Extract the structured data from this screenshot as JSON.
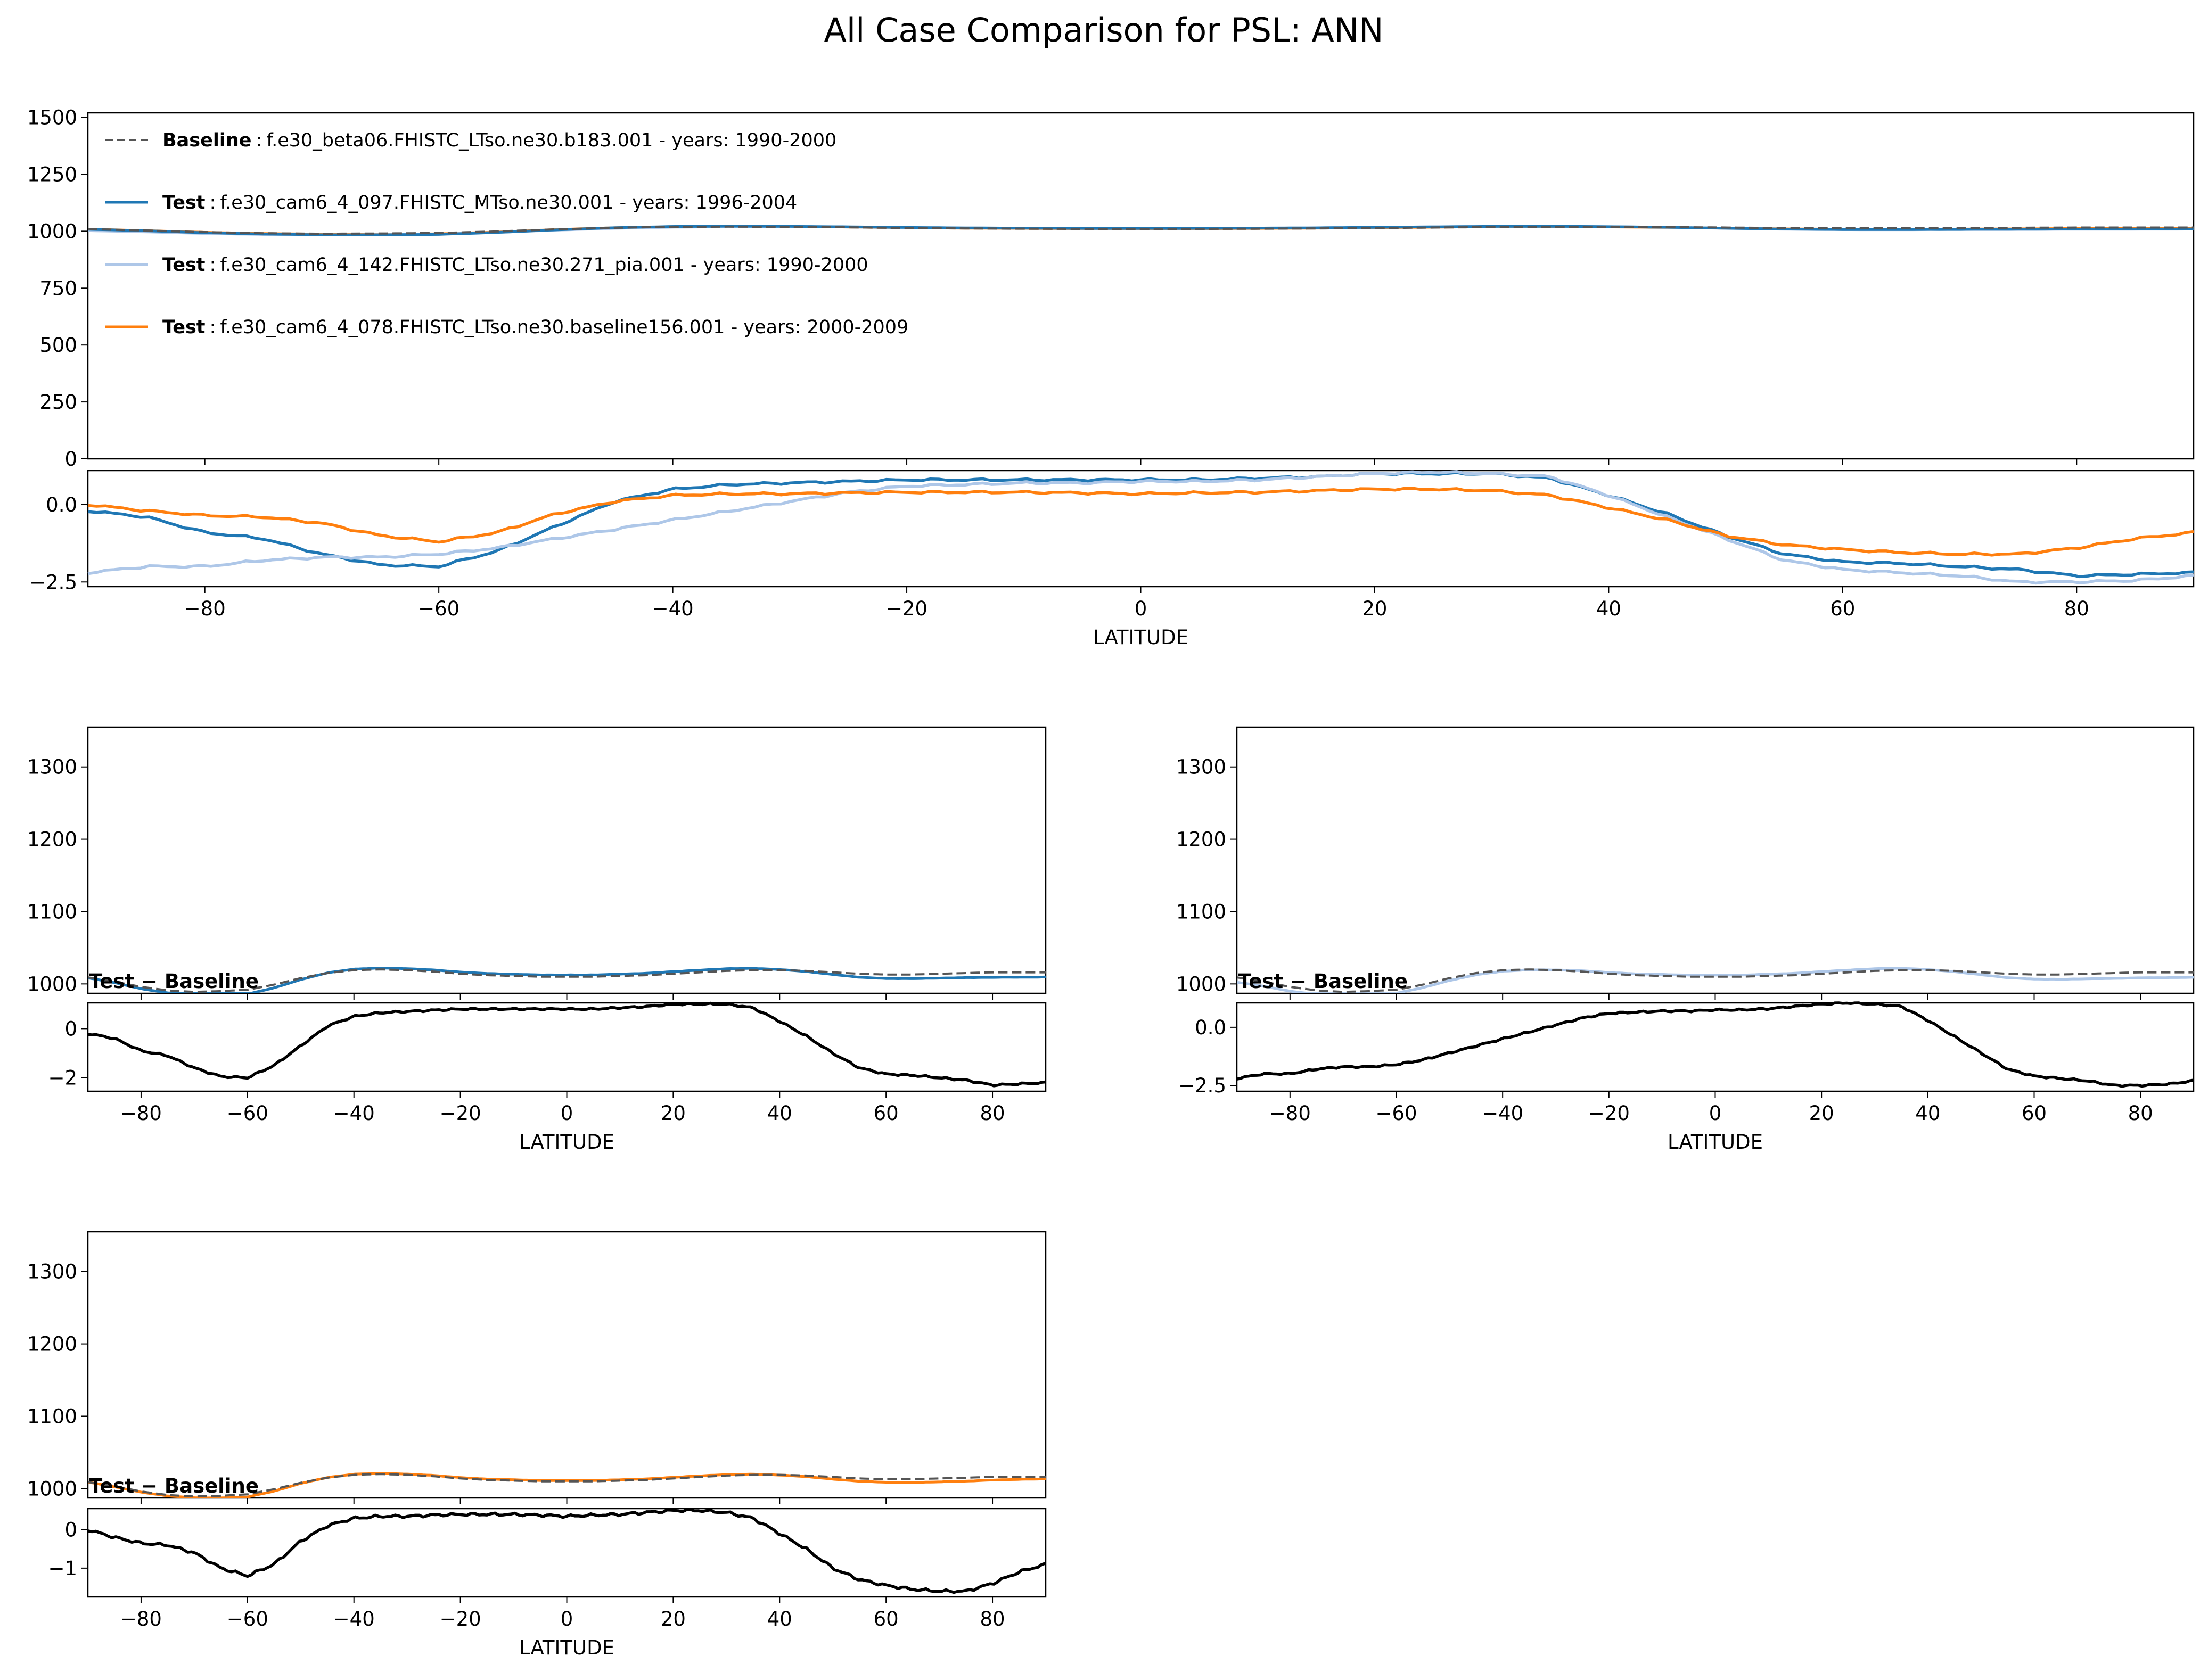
{
  "figure": {
    "title": "All Case Comparison for PSL: ANN",
    "colors": {
      "baseline": "#555555",
      "test1": "#1f77b4",
      "test2": "#aec7e8",
      "test3": "#ff7f0e",
      "diff": "#000000"
    }
  },
  "legend": [
    {
      "role": "Baseline",
      "sep": ":",
      "text": "f.e30_beta06.FHISTC_LTso.ne30.b183.001 - years: 1990-2000",
      "series": "baseline"
    },
    {
      "role": "Test",
      "sep": ":",
      "text": "f.e30_cam6_4_097.FHISTC_MTso.ne30.001 - years: 1996-2004",
      "series": "test1"
    },
    {
      "role": "Test",
      "sep": ":",
      "text": "f.e30_cam6_4_142.FHISTC_LTso.ne30.271_pia.001 - years: 1990-2000",
      "series": "test2"
    },
    {
      "role": "Test",
      "sep": ":",
      "text": "f.e30_cam6_4_078.FHISTC_LTso.ne30.baseline156.001 - years: 2000-2009",
      "series": "test3"
    }
  ],
  "chart_data": [
    {
      "type": "line",
      "id": "all",
      "xlabel": "LATITUDE",
      "xlim": [
        -90,
        90
      ],
      "xticks": [
        -80,
        -60,
        -40,
        -20,
        0,
        20,
        40,
        60,
        80
      ],
      "main": {
        "ylim": [
          0,
          1520
        ],
        "yticks": [
          0,
          250,
          500,
          750,
          1000,
          1250,
          1500
        ],
        "series": [
          "baseline",
          "test1",
          "test2",
          "test3"
        ]
      },
      "diff": {
        "ylim": [
          -2.65,
          1.1
        ],
        "yticks": [
          0.0,
          -2.5
        ],
        "ytick_labels": [
          "0.0",
          "−2.5"
        ],
        "series": [
          "test1",
          "test2",
          "test3"
        ]
      }
    },
    {
      "type": "line",
      "id": "case1",
      "title": "Test − Baseline",
      "xlabel": "LATITUDE",
      "xlim": [
        -90,
        90
      ],
      "xticks": [
        -80,
        -60,
        -40,
        -20,
        0,
        20,
        40,
        60,
        80
      ],
      "main": {
        "ylim": [
          987,
          1355
        ],
        "yticks": [
          1000,
          1100,
          1200,
          1300
        ],
        "series": [
          "baseline",
          "test1"
        ]
      },
      "diff": {
        "ylim": [
          -2.55,
          1.05
        ],
        "yticks": [
          0,
          -2
        ],
        "ytick_labels": [
          "0",
          "−2"
        ],
        "series": [
          "test1"
        ]
      }
    },
    {
      "type": "line",
      "id": "case2",
      "title": "Test − Baseline",
      "xlabel": "LATITUDE",
      "xlim": [
        -90,
        90
      ],
      "xticks": [
        -80,
        -60,
        -40,
        -20,
        0,
        20,
        40,
        60,
        80
      ],
      "main": {
        "ylim": [
          987,
          1355
        ],
        "yticks": [
          1000,
          1100,
          1200,
          1300
        ],
        "series": [
          "baseline",
          "test2"
        ]
      },
      "diff": {
        "ylim": [
          -2.75,
          1.05
        ],
        "yticks": [
          0.0,
          -2.5
        ],
        "ytick_labels": [
          "0.0",
          "−2.5"
        ],
        "series": [
          "test2"
        ]
      }
    },
    {
      "type": "line",
      "id": "case3",
      "title": "Test − Baseline",
      "xlabel": "LATITUDE",
      "xlim": [
        -90,
        90
      ],
      "xticks": [
        -80,
        -60,
        -40,
        -20,
        0,
        20,
        40,
        60,
        80
      ],
      "main": {
        "ylim": [
          987,
          1355
        ],
        "yticks": [
          1000,
          1100,
          1200,
          1300
        ],
        "series": [
          "baseline",
          "test3"
        ]
      },
      "diff": {
        "ylim": [
          -1.75,
          0.55
        ],
        "yticks": [
          0,
          -1
        ],
        "ytick_labels": [
          "0",
          "−1"
        ],
        "series": [
          "test3"
        ]
      }
    }
  ],
  "series_data": {
    "lat": [
      -90,
      -85,
      -80,
      -75,
      -70,
      -65,
      -60,
      -55,
      -50,
      -45,
      -40,
      -35,
      -30,
      -25,
      -20,
      -15,
      -10,
      -5,
      0,
      5,
      10,
      15,
      20,
      25,
      30,
      35,
      40,
      45,
      50,
      55,
      60,
      65,
      70,
      75,
      80,
      85,
      90
    ],
    "baseline": [
      1009,
      1003,
      996,
      991,
      989,
      990,
      992,
      999,
      1008,
      1015,
      1019,
      1020,
      1019,
      1017,
      1014,
      1012,
      1011,
      1010,
      1010,
      1010,
      1011,
      1012,
      1014,
      1016,
      1018,
      1019,
      1019,
      1018,
      1016,
      1014,
      1013,
      1013,
      1014,
      1015,
      1016,
      1016,
      1016
    ],
    "diff_test1": [
      -0.2,
      -0.4,
      -0.9,
      -1.1,
      -1.6,
      -1.95,
      -2.0,
      -1.5,
      -0.7,
      0.1,
      0.5,
      0.65,
      0.7,
      0.75,
      0.8,
      0.8,
      0.8,
      0.8,
      0.8,
      0.8,
      0.85,
      0.9,
      1.0,
      1.0,
      1.0,
      0.85,
      0.3,
      -0.3,
      -1.0,
      -1.6,
      -1.85,
      -1.9,
      -2.0,
      -2.1,
      -2.3,
      -2.25,
      -2.2
    ],
    "diff_test2": [
      -2.2,
      -2.0,
      -2.0,
      -1.8,
      -1.7,
      -1.7,
      -1.6,
      -1.4,
      -1.1,
      -0.8,
      -0.5,
      -0.2,
      0.1,
      0.4,
      0.6,
      0.65,
      0.7,
      0.7,
      0.75,
      0.75,
      0.8,
      0.9,
      1.0,
      1.05,
      1.0,
      0.9,
      0.3,
      -0.4,
      -1.1,
      -1.8,
      -2.1,
      -2.2,
      -2.3,
      -2.5,
      -2.5,
      -2.45,
      -2.3
    ],
    "diff_test3": [
      0.0,
      -0.2,
      -0.35,
      -0.4,
      -0.6,
      -1.0,
      -1.2,
      -0.9,
      -0.3,
      0.1,
      0.3,
      0.35,
      0.35,
      0.38,
      0.4,
      0.4,
      0.4,
      0.38,
      0.35,
      0.38,
      0.4,
      0.45,
      0.5,
      0.5,
      0.45,
      0.3,
      -0.1,
      -0.5,
      -1.0,
      -1.3,
      -1.45,
      -1.55,
      -1.6,
      -1.6,
      -1.4,
      -1.1,
      -0.9
    ]
  }
}
